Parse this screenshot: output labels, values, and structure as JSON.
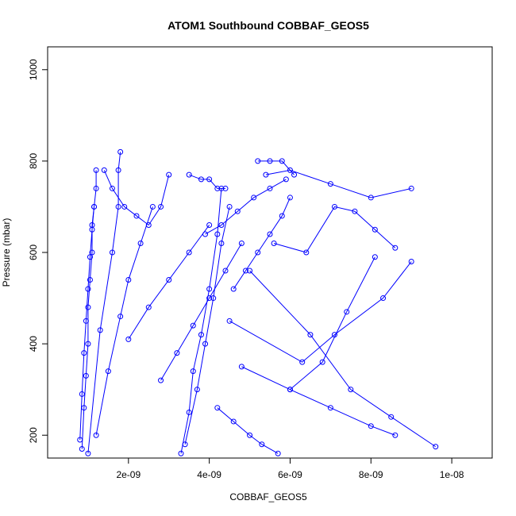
{
  "chart_data": {
    "type": "line",
    "title": "ATOM1 Southbound COBBAF_GEOS5",
    "xlabel": "COBBAF_GEOS5",
    "ylabel": "Pressure (mbar)",
    "xlim": [
      0,
      1.1e-08
    ],
    "ylim": [
      1050,
      150
    ],
    "y_inverted": true,
    "x_ticks": [
      {
        "value": 2e-09,
        "label": "2e-09"
      },
      {
        "value": 4e-09,
        "label": "4e-09"
      },
      {
        "value": 6e-09,
        "label": "6e-09"
      },
      {
        "value": 8e-09,
        "label": "8e-09"
      },
      {
        "value": 1e-08,
        "label": "1e-08"
      }
    ],
    "y_ticks": [
      {
        "value": 200,
        "label": "200"
      },
      {
        "value": 400,
        "label": "400"
      },
      {
        "value": 600,
        "label": "600"
      },
      {
        "value": 800,
        "label": "800"
      },
      {
        "value": 1000,
        "label": "1000"
      }
    ],
    "marker": "open-circle",
    "color": "#0000ff",
    "grid": false,
    "series": [
      {
        "x": [
          8.5e-10,
          9e-10,
          9.5e-10,
          1e-09,
          1e-09,
          1.05e-09,
          1.1e-09,
          1.1e-09,
          1.15e-09,
          1.2e-09,
          1.2e-09
        ],
        "y": [
          170,
          260,
          330,
          400,
          480,
          540,
          600,
          660,
          700,
          740,
          780
        ]
      },
      {
        "x": [
          8e-10,
          8.5e-10,
          9e-10,
          9.5e-10,
          1e-09,
          1.05e-09,
          1.1e-09,
          1.15e-09
        ],
        "y": [
          190,
          290,
          380,
          450,
          520,
          590,
          650,
          700
        ]
      },
      {
        "x": [
          1e-09,
          1.3e-09,
          1.6e-09,
          1.75e-09,
          1.75e-09,
          1.8e-09
        ],
        "y": [
          160,
          430,
          600,
          700,
          780,
          820
        ]
      },
      {
        "x": [
          1.2e-09,
          1.5e-09,
          1.8e-09,
          2e-09,
          2.3e-09,
          2.6e-09
        ],
        "y": [
          200,
          340,
          460,
          540,
          620,
          700
        ]
      },
      {
        "x": [
          1.4e-09,
          1.6e-09,
          1.9e-09,
          2.2e-09,
          2.5e-09,
          2.8e-09,
          3e-09
        ],
        "y": [
          780,
          740,
          700,
          680,
          660,
          700,
          770
        ]
      },
      {
        "x": [
          3.3e-09,
          3.5e-09,
          3.6e-09,
          3.8e-09,
          4e-09,
          4.2e-09,
          4.3e-09
        ],
        "y": [
          160,
          250,
          340,
          420,
          520,
          640,
          740
        ]
      },
      {
        "x": [
          3.4e-09,
          3.7e-09,
          3.9e-09,
          4.1e-09,
          4.3e-09,
          4.5e-09
        ],
        "y": [
          180,
          300,
          400,
          500,
          620,
          700
        ]
      },
      {
        "x": [
          3.5e-09,
          3.8e-09,
          4e-09,
          4.2e-09,
          4.4e-09
        ],
        "y": [
          770,
          760,
          760,
          740,
          740
        ]
      },
      {
        "x": [
          3.9e-09,
          4.3e-09,
          4.7e-09,
          5.1e-09,
          5.5e-09,
          5.9e-09
        ],
        "y": [
          640,
          660,
          690,
          720,
          740,
          760
        ]
      },
      {
        "x": [
          5.2e-09,
          5.5e-09,
          5.8e-09,
          6.1e-09
        ],
        "y": [
          800,
          800,
          800,
          770
        ]
      },
      {
        "x": [
          5.4e-09,
          6e-09,
          7e-09,
          8e-09,
          9e-09
        ],
        "y": [
          770,
          780,
          750,
          720,
          740
        ]
      },
      {
        "x": [
          4.8e-09,
          6e-09,
          7e-09,
          8e-09,
          8.6e-09
        ],
        "y": [
          350,
          300,
          260,
          220,
          200
        ]
      },
      {
        "x": [
          4.5e-09,
          6.3e-09,
          7.1e-09,
          8.3e-09,
          9e-09
        ],
        "y": [
          450,
          360,
          420,
          500,
          580
        ]
      },
      {
        "x": [
          5e-09,
          6.5e-09,
          7.5e-09,
          8.5e-09,
          9.6e-09
        ],
        "y": [
          560,
          420,
          300,
          240,
          175
        ]
      },
      {
        "x": [
          5.6e-09,
          6.4e-09,
          7.1e-09,
          7.6e-09,
          8.1e-09,
          8.6e-09
        ],
        "y": [
          620,
          600,
          700,
          690,
          650,
          610
        ]
      },
      {
        "x": [
          2.8e-09,
          3.2e-09,
          3.6e-09,
          4e-09,
          4.4e-09,
          4.8e-09
        ],
        "y": [
          320,
          380,
          440,
          500,
          560,
          620
        ]
      },
      {
        "x": [
          4.6e-09,
          4.9e-09,
          5.2e-09,
          5.5e-09,
          5.8e-09,
          6e-09
        ],
        "y": [
          520,
          560,
          600,
          640,
          680,
          720
        ]
      },
      {
        "x": [
          2e-09,
          2.5e-09,
          3e-09,
          3.5e-09,
          4e-09
        ],
        "y": [
          410,
          480,
          540,
          600,
          660
        ]
      },
      {
        "x": [
          6e-09,
          6.8e-09,
          7.4e-09,
          8.1e-09
        ],
        "y": [
          300,
          360,
          470,
          590
        ]
      },
      {
        "x": [
          4.2e-09,
          4.6e-09,
          5e-09,
          5.3e-09,
          5.7e-09
        ],
        "y": [
          260,
          230,
          200,
          180,
          160
        ]
      }
    ]
  }
}
